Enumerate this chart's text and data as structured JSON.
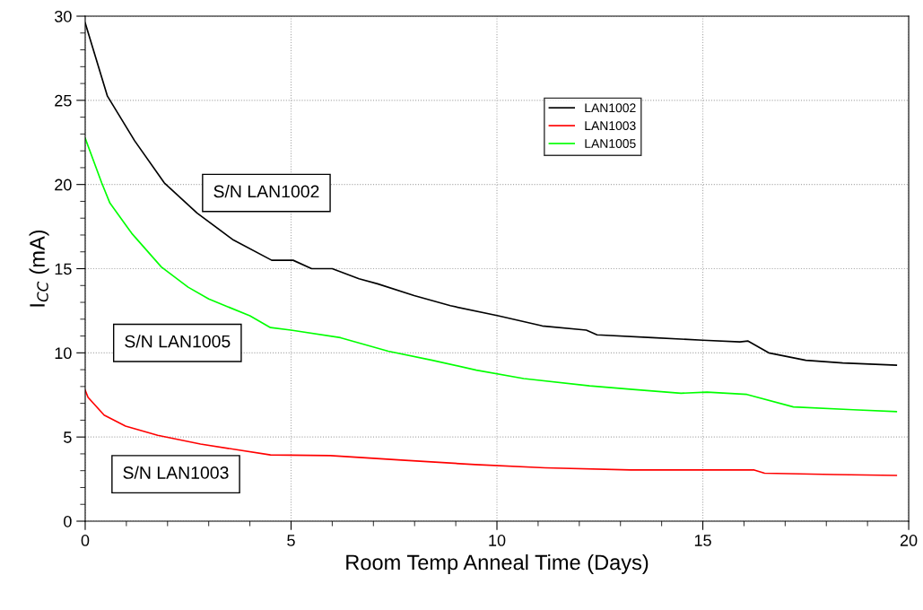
{
  "chart_data": {
    "type": "line",
    "xlabel": "Room Temp Anneal Time (Days)",
    "ylabel": "I$_{CC}$ (mA)",
    "xlim": [
      0,
      20
    ],
    "xticks": [
      0,
      5,
      10,
      15,
      20
    ],
    "ylim": [
      0,
      30
    ],
    "yticks": [
      0,
      5,
      10,
      15,
      20,
      25,
      30
    ],
    "grid": true,
    "legend": "top right",
    "line_style": "solid",
    "marker": "none",
    "series": [
      {
        "name": "LAN1002",
        "color": "#000000",
        "x": [
          0,
          0.54,
          1.2,
          1.92,
          2.72,
          3.6,
          4.53,
          5.05,
          5.5,
          6.0,
          6.65,
          7.1,
          7.99,
          8.87,
          10.03,
          11.1,
          12.17,
          12.43,
          13.77,
          15.0,
          15.9,
          16.1,
          16.6,
          17.5,
          18.4,
          19.7
        ],
        "values": [
          29.6,
          25.25,
          22.6,
          20.1,
          18.3,
          16.7,
          15.5,
          15.5,
          15.0,
          15.0,
          14.4,
          14.1,
          13.4,
          12.8,
          12.2,
          11.6,
          11.35,
          11.07,
          10.9,
          10.75,
          10.65,
          10.7,
          10.0,
          9.56,
          9.4,
          9.27
        ]
      },
      {
        "name": "LAN1003",
        "color": "#ff0000",
        "x": [
          0,
          0.07,
          0.46,
          0.98,
          1.76,
          2.8,
          4.5,
          5.95,
          7.77,
          9.47,
          11.17,
          13.25,
          16.25,
          16.5,
          18.2,
          19.7
        ],
        "values": [
          7.78,
          7.35,
          6.3,
          5.65,
          5.1,
          4.58,
          3.94,
          3.9,
          3.62,
          3.36,
          3.17,
          3.04,
          3.04,
          2.85,
          2.77,
          2.72
        ]
      },
      {
        "name": "LAN1005",
        "color": "#00ff00",
        "x": [
          0,
          0.4,
          0.6,
          1.13,
          1.85,
          2.5,
          3.0,
          4.0,
          4.5,
          5.0,
          6.2,
          7.36,
          8.43,
          9.5,
          10.65,
          12.25,
          13.3,
          14.47,
          15.1,
          16.07,
          17.2,
          18.65,
          19.7
        ],
        "values": [
          22.75,
          20.1,
          18.9,
          17.1,
          15.1,
          13.9,
          13.2,
          12.2,
          11.5,
          11.35,
          10.9,
          10.1,
          9.56,
          8.97,
          8.47,
          8.04,
          7.83,
          7.6,
          7.67,
          7.53,
          6.79,
          6.62,
          6.51
        ]
      }
    ],
    "annotations": [
      "S/N LAN1002",
      "S/N LAN1005",
      "S/N LAN1003"
    ]
  }
}
